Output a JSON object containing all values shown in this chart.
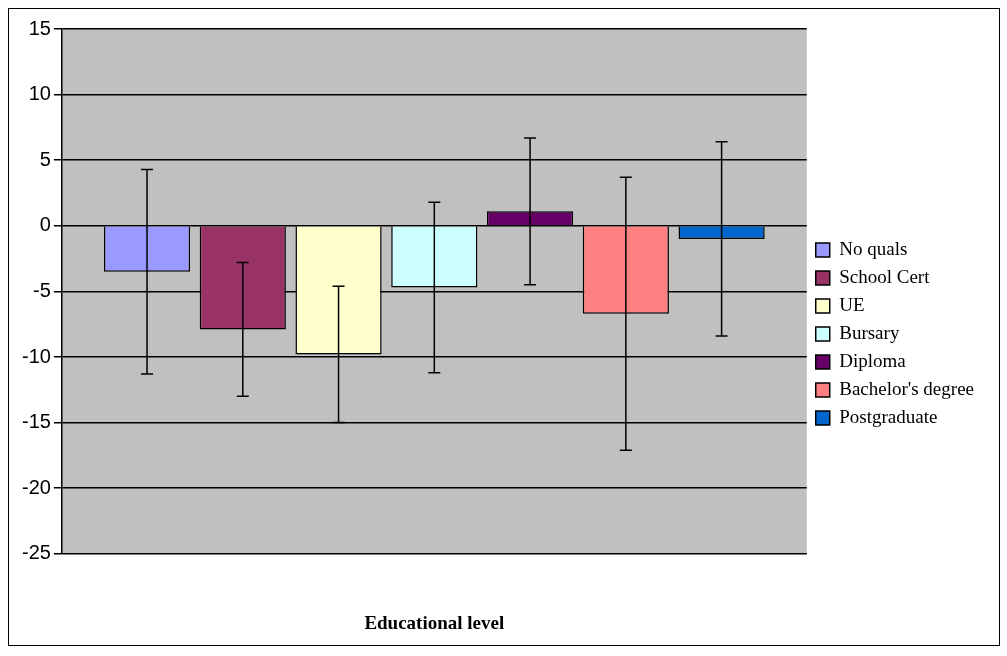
{
  "chart_data": {
    "type": "bar",
    "xlabel": "Educational level",
    "categories": [
      null
    ],
    "series": [
      {
        "name": "No quals",
        "color": "#9999ff",
        "values": [
          -3.5
        ],
        "errors": [
          7.8
        ]
      },
      {
        "name": "School Cert",
        "color": "#993366",
        "values": [
          -7.9
        ],
        "errors": [
          5.1
        ]
      },
      {
        "name": "UE",
        "color": "#ffffcc",
        "values": [
          -9.8
        ],
        "errors": [
          5.2
        ]
      },
      {
        "name": "Bursary",
        "color": "#ccffff",
        "values": [
          -4.7
        ],
        "errors": [
          6.5
        ]
      },
      {
        "name": "Diploma",
        "color": "#660066",
        "values": [
          1.1
        ],
        "errors": [
          5.6
        ]
      },
      {
        "name": "Bachelor's degree",
        "color": "#ff8080",
        "values": [
          -6.7
        ],
        "errors": [
          10.4
        ]
      },
      {
        "name": "Postgraduate",
        "color": "#0066cc",
        "values": [
          -1.0
        ],
        "errors": [
          7.4
        ]
      }
    ],
    "ylim": [
      -25,
      15
    ],
    "yticks": [
      -25,
      -20,
      -15,
      -10,
      -5,
      0,
      5,
      10,
      15
    ],
    "grid": "y",
    "legend": "right"
  }
}
